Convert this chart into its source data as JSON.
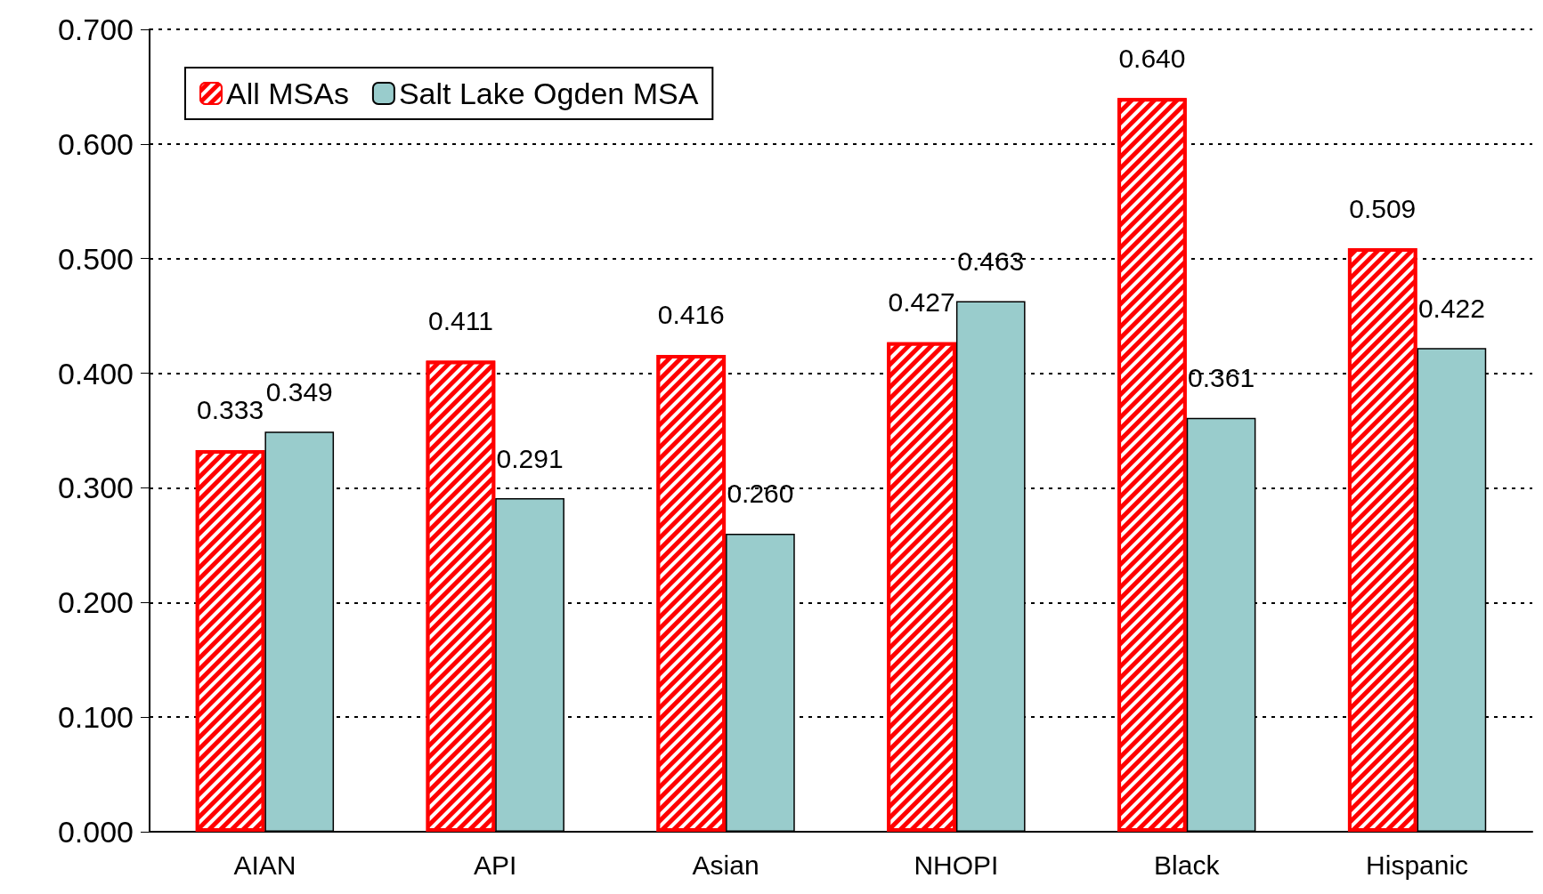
{
  "chart_data": {
    "type": "bar",
    "categories": [
      "AIAN",
      "API",
      "Asian",
      "NHOPI",
      "Black",
      "Hispanic"
    ],
    "series": [
      {
        "name": "All MSAs",
        "color": "#ff0000",
        "values": [
          0.333,
          0.411,
          0.416,
          0.427,
          0.64,
          0.509
        ],
        "value_labels": [
          "0.333",
          "0.411",
          "0.416",
          "0.427",
          "0.640",
          "0.509"
        ]
      },
      {
        "name": "Salt Lake Ogden MSA",
        "color": "#99cccc",
        "values": [
          0.349,
          0.291,
          0.26,
          0.463,
          0.361,
          0.422
        ],
        "value_labels": [
          "0.349",
          "0.291",
          "0.260",
          "0.463",
          "0.361",
          "0.422"
        ]
      }
    ],
    "ylim": [
      0,
      0.7
    ],
    "yticks": [
      {
        "value": 0,
        "label": "0.000"
      },
      {
        "value": 0.1,
        "label": "0.100"
      },
      {
        "value": 0.2,
        "label": "0.200"
      },
      {
        "value": 0.3,
        "label": "0.300"
      },
      {
        "value": 0.4,
        "label": "0.400"
      },
      {
        "value": 0.5,
        "label": "0.500"
      },
      {
        "value": 0.6,
        "label": "0.600"
      },
      {
        "value": 0.7,
        "label": "0.700"
      }
    ],
    "grid": "y",
    "legend": "top left"
  }
}
